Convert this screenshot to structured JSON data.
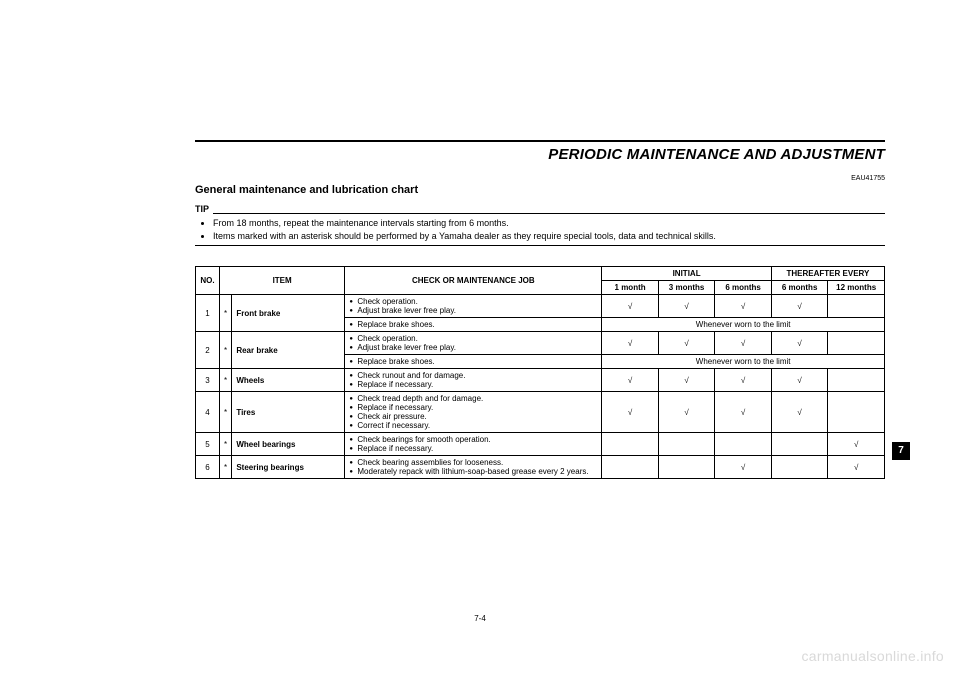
{
  "header": {
    "section_title": "PERIODIC MAINTENANCE AND ADJUSTMENT",
    "doc_code": "EAU41755",
    "subsection": "General maintenance and lubrication chart"
  },
  "tip": {
    "label": "TIP",
    "items": [
      "From 18 months, repeat the maintenance intervals starting from 6 months.",
      "Items marked with an asterisk should be performed by a Yamaha dealer as they require special tools, data and technical skills."
    ]
  },
  "table": {
    "headers": {
      "no": "NO.",
      "item": "ITEM",
      "job": "CHECK OR MAINTENANCE JOB",
      "initial": "INITIAL",
      "thereafter": "THEREAFTER EVERY",
      "m1": "1 month",
      "m3": "3 months",
      "m6": "6 months",
      "m6b": "6 months",
      "m12": "12 months"
    },
    "check": "√",
    "worn_note": "Whenever worn to the limit",
    "rows": [
      {
        "no": "1",
        "ast": "*",
        "item": "Front brake",
        "job1": [
          "Check operation.",
          "Adjust brake lever free play."
        ],
        "marks1": [
          "√",
          "√",
          "√",
          "√",
          ""
        ],
        "job2": [
          "Replace brake shoes."
        ],
        "note2": true
      },
      {
        "no": "2",
        "ast": "*",
        "item": "Rear brake",
        "job1": [
          "Check operation.",
          "Adjust brake lever free play."
        ],
        "marks1": [
          "√",
          "√",
          "√",
          "√",
          ""
        ],
        "job2": [
          "Replace brake shoes."
        ],
        "note2": true
      },
      {
        "no": "3",
        "ast": "*",
        "item": "Wheels",
        "job1": [
          "Check runout and for damage.",
          "Replace if necessary."
        ],
        "marks1": [
          "√",
          "√",
          "√",
          "√",
          ""
        ]
      },
      {
        "no": "4",
        "ast": "*",
        "item": "Tires",
        "job1": [
          "Check tread depth and for damage.",
          "Replace if necessary.",
          "Check air pressure.",
          "Correct if necessary."
        ],
        "marks1": [
          "√",
          "√",
          "√",
          "√",
          ""
        ]
      },
      {
        "no": "5",
        "ast": "*",
        "item": "Wheel bearings",
        "job1": [
          "Check bearings for smooth operation.",
          "Replace if necessary."
        ],
        "marks1": [
          "",
          "",
          "",
          "",
          "√"
        ]
      },
      {
        "no": "6",
        "ast": "*",
        "item": "Steering bearings",
        "job1": [
          "Check bearing assemblies for looseness.",
          "Moderately repack with lithium-soap-based grease every 2 years."
        ],
        "marks1": [
          "",
          "",
          "√",
          "",
          "√"
        ]
      }
    ]
  },
  "side_tab": "7",
  "page_num": "7-4",
  "watermark": "carmanualsonline.info"
}
